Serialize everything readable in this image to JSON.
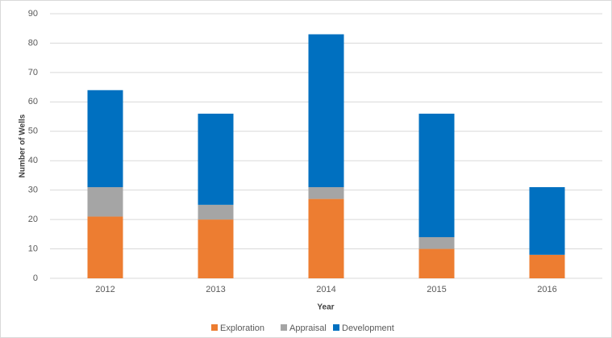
{
  "chart_data": {
    "type": "stacked_bar",
    "y_label": "Number of Wells",
    "x_label": "Year",
    "categories": [
      "2012",
      "2013",
      "2014",
      "2015",
      "2016"
    ],
    "series": [
      {
        "name": "Exploration",
        "color": "#ed7d31",
        "values": [
          21,
          20,
          27,
          10,
          8
        ]
      },
      {
        "name": "Appraisal",
        "color": "#a5a5a5",
        "values": [
          10,
          5,
          4,
          4,
          0
        ]
      },
      {
        "name": "Development",
        "color": "#0070c0",
        "values": [
          33,
          31,
          52,
          42,
          23
        ]
      }
    ],
    "ylim": [
      0,
      90
    ],
    "yticks": [
      0,
      10,
      20,
      30,
      40,
      50,
      60,
      70,
      80,
      90
    ],
    "grid": true,
    "legend": "bottom"
  }
}
